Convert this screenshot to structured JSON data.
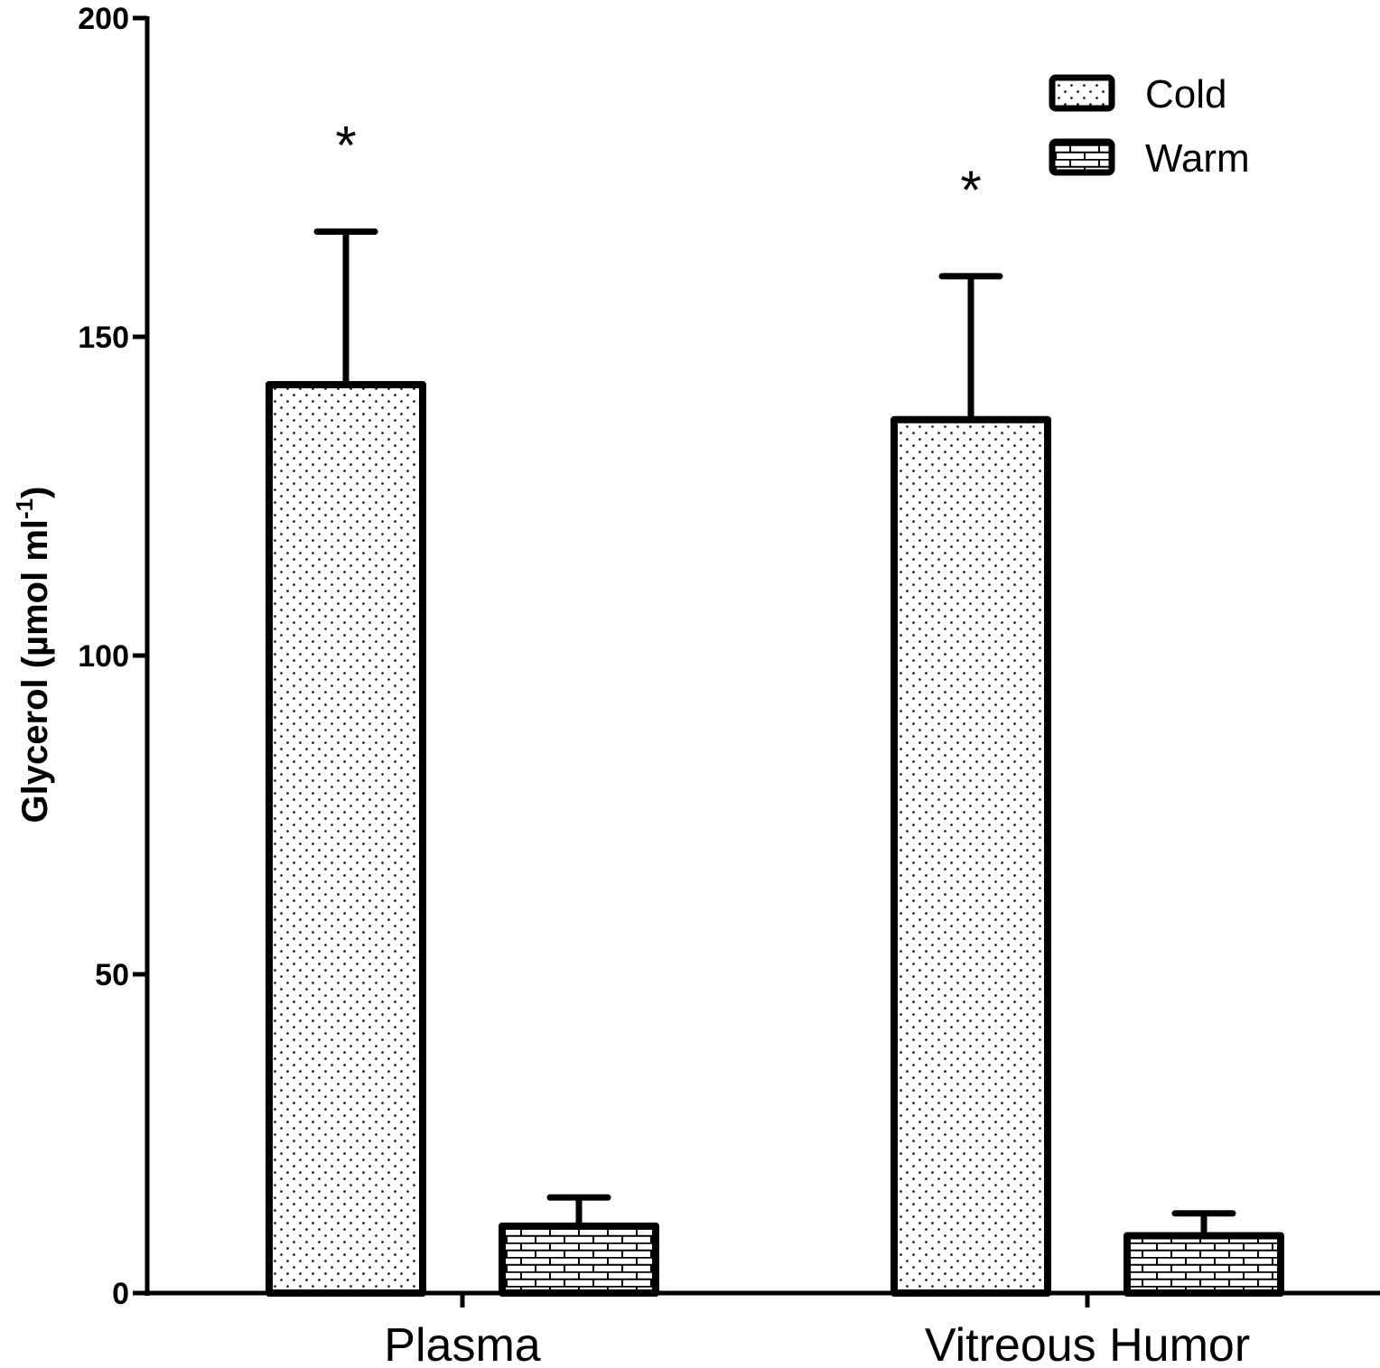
{
  "chart_data": {
    "type": "bar",
    "title": "",
    "xlabel": "",
    "ylabel": {
      "main": "Glycerol (µmol ml",
      "superscript": "-1",
      "close": ")"
    },
    "ylim": [
      0,
      200
    ],
    "yticks": [
      0,
      50,
      100,
      150,
      200
    ],
    "categories": [
      "Plasma",
      "Vitreous Humor"
    ],
    "series": [
      {
        "name": "Cold",
        "pattern": "dots",
        "values": [
          142.5,
          137
        ],
        "errors": [
          24,
          22.5
        ],
        "significance": [
          "*",
          "*"
        ]
      },
      {
        "name": "Warm",
        "pattern": "bricks",
        "values": [
          10.5,
          9
        ],
        "errors": [
          4.5,
          3.5
        ],
        "significance": [
          "",
          ""
        ]
      }
    ],
    "legend": {
      "position": "top-right"
    }
  }
}
